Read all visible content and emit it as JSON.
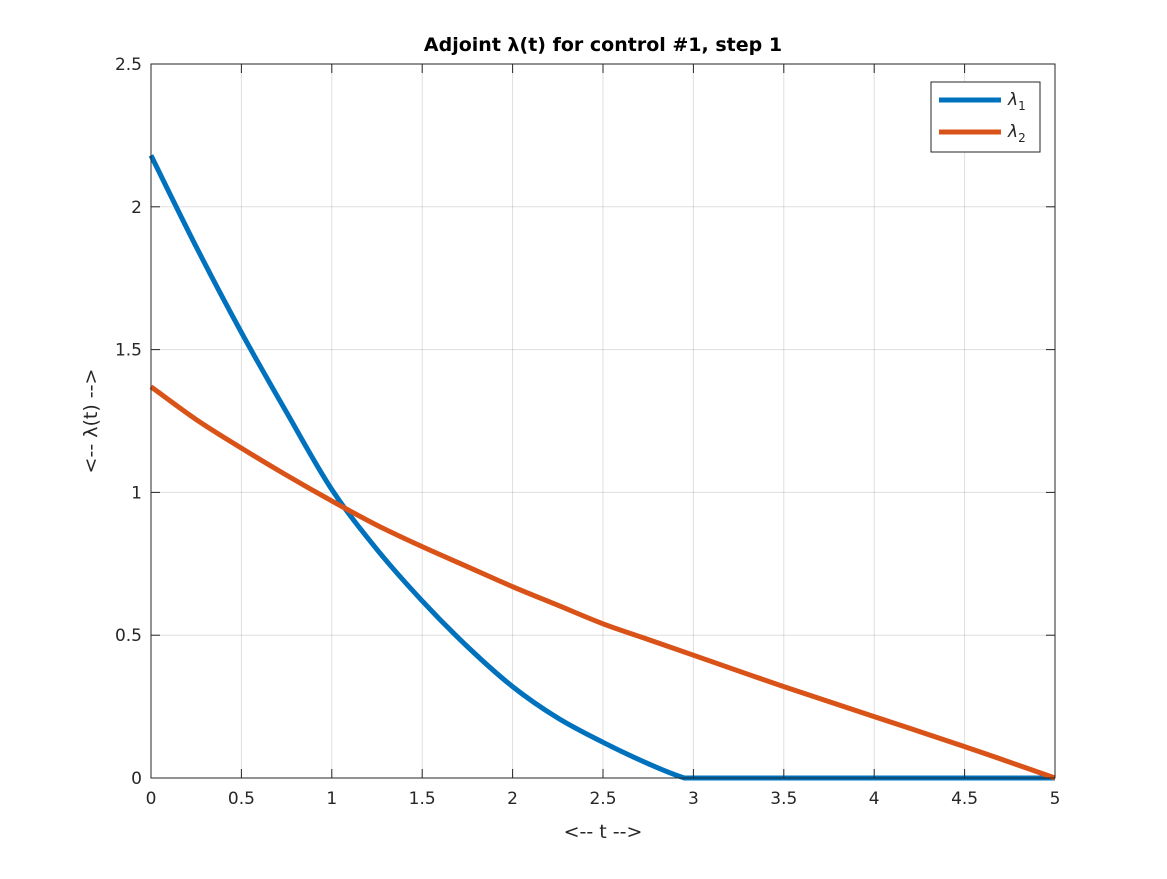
{
  "chart_data": {
    "type": "line",
    "title": "Adjoint λ(t) for control #1, step 1",
    "xlabel": "<-- t -->",
    "ylabel": "<-- λ(t) -->",
    "xlim": [
      0,
      5
    ],
    "ylim": [
      0,
      2.5
    ],
    "xticks": [
      0,
      0.5,
      1,
      1.5,
      2,
      2.5,
      3,
      3.5,
      4,
      4.5,
      5
    ],
    "xtick_labels": [
      "0",
      "0.5",
      "1",
      "1.5",
      "2",
      "2.5",
      "3",
      "3.5",
      "4",
      "4.5",
      "5"
    ],
    "yticks": [
      0,
      0.5,
      1,
      1.5,
      2,
      2.5
    ],
    "ytick_labels": [
      "0",
      "0.5",
      "1",
      "1.5",
      "2",
      "2.5"
    ],
    "grid": true,
    "legend_position": "top-right",
    "series": [
      {
        "name": "λ1",
        "base": "λ",
        "sub": "1",
        "color": "#0072BD",
        "x": [
          0,
          0.25,
          0.5,
          0.75,
          1,
          1.25,
          1.5,
          1.75,
          2,
          2.25,
          2.5,
          2.75,
          2.95,
          3,
          3.5,
          4,
          4.5,
          5
        ],
        "y": [
          2.18,
          1.86,
          1.56,
          1.28,
          1.01,
          0.8,
          0.62,
          0.46,
          0.32,
          0.21,
          0.125,
          0.05,
          0,
          0,
          0,
          0,
          0,
          0
        ]
      },
      {
        "name": "λ2",
        "base": "λ",
        "sub": "2",
        "color": "#D95319",
        "x": [
          0,
          0.25,
          0.5,
          0.75,
          1,
          1.25,
          1.5,
          1.75,
          2,
          2.25,
          2.5,
          2.75,
          3,
          3.5,
          4,
          4.5,
          5
        ],
        "y": [
          1.37,
          1.255,
          1.155,
          1.06,
          0.97,
          0.885,
          0.81,
          0.74,
          0.67,
          0.605,
          0.54,
          0.485,
          0.43,
          0.32,
          0.215,
          0.11,
          0
        ]
      }
    ]
  }
}
